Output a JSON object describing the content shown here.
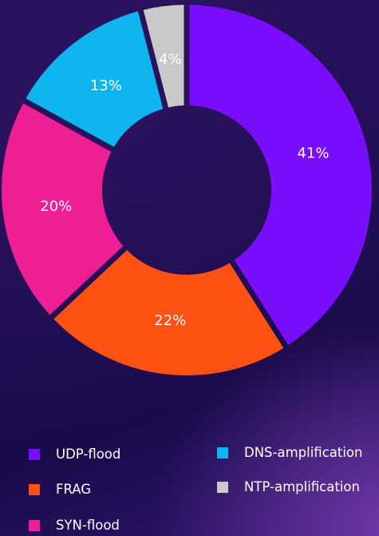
{
  "chart_data": {
    "type": "pie",
    "title": "",
    "categories": [
      "UDP-flood",
      "FRAG",
      "SYN-flood",
      "DNS-amplification",
      "NTP-amplification"
    ],
    "values": [
      41,
      22,
      20,
      13,
      4
    ],
    "labels": [
      "41%",
      "22%",
      "20%",
      "13%",
      "4%"
    ],
    "colors": [
      "#7A0DFB",
      "#FE5112",
      "#EE1E94",
      "#0EB4EE",
      "#C9C9C9"
    ],
    "donut": true,
    "legend": "bottom"
  }
}
